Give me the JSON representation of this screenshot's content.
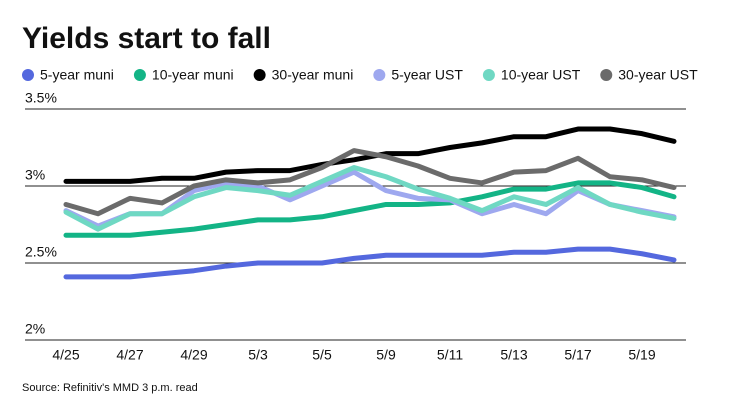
{
  "chart_data": {
    "type": "line",
    "title": "Yields start to fall",
    "source": "Source: Refinitiv's MMD 3 p.m. read",
    "categories": [
      "4/25",
      null,
      "4/27",
      null,
      "4/29",
      null,
      "5/3",
      null,
      "5/5",
      null,
      "5/9",
      null,
      "5/11",
      null,
      "5/13",
      null,
      "5/17",
      null,
      "5/19",
      null
    ],
    "ylim": [
      2,
      3.5
    ],
    "yticks": [
      {
        "value": 2,
        "label": "2%"
      },
      {
        "value": 2.5,
        "label": "2.5%"
      },
      {
        "value": 3,
        "label": "3%"
      },
      {
        "value": 3.5,
        "label": "3.5%"
      }
    ],
    "grid": true,
    "series": [
      {
        "name": "5-year muni",
        "color": "#5468de",
        "values": [
          2.41,
          2.41,
          2.41,
          2.43,
          2.45,
          2.48,
          2.5,
          2.5,
          2.5,
          2.53,
          2.55,
          2.55,
          2.55,
          2.55,
          2.57,
          2.57,
          2.59,
          2.59,
          2.56,
          2.52
        ]
      },
      {
        "name": "10-year muni",
        "color": "#13b486",
        "values": [
          2.68,
          2.68,
          2.68,
          2.7,
          2.72,
          2.75,
          2.78,
          2.78,
          2.8,
          2.84,
          2.88,
          2.88,
          2.89,
          2.93,
          2.98,
          2.98,
          3.02,
          3.02,
          2.99,
          2.93
        ]
      },
      {
        "name": "30-year muni",
        "color": "#000000",
        "values": [
          3.03,
          3.03,
          3.03,
          3.05,
          3.05,
          3.09,
          3.1,
          3.1,
          3.14,
          3.17,
          3.21,
          3.21,
          3.25,
          3.28,
          3.32,
          3.32,
          3.37,
          3.37,
          3.34,
          3.29
        ]
      },
      {
        "name": "5-year UST",
        "color": "#9ea8ef",
        "values": [
          2.84,
          2.74,
          2.82,
          2.82,
          2.97,
          3.02,
          3.0,
          2.91,
          3.0,
          3.09,
          2.97,
          2.92,
          2.91,
          2.82,
          2.88,
          2.82,
          2.97,
          2.88,
          2.84,
          2.8
        ]
      },
      {
        "name": "10-year UST",
        "color": "#6fd8c3",
        "values": [
          2.83,
          2.72,
          2.82,
          2.82,
          2.93,
          2.99,
          2.97,
          2.94,
          3.03,
          3.12,
          3.06,
          2.98,
          2.92,
          2.84,
          2.93,
          2.88,
          2.99,
          2.88,
          2.83,
          2.79
        ]
      },
      {
        "name": "30-year UST",
        "color": "#6b6b6b",
        "values": [
          2.88,
          2.82,
          2.92,
          2.89,
          3.0,
          3.04,
          3.02,
          3.04,
          3.12,
          3.23,
          3.19,
          3.13,
          3.05,
          3.02,
          3.09,
          3.1,
          3.18,
          3.06,
          3.04,
          2.99
        ]
      }
    ]
  }
}
